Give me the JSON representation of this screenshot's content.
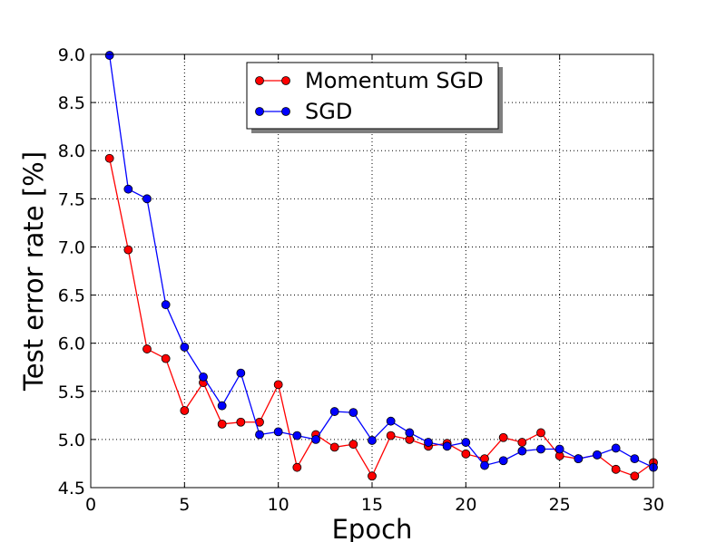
{
  "chart_data": {
    "type": "line",
    "title": "",
    "xlabel": "Epoch",
    "ylabel": "Test error rate [%]",
    "xlim": [
      0,
      30
    ],
    "ylim": [
      4.5,
      9.0
    ],
    "xticks": [
      0,
      5,
      10,
      15,
      20,
      25,
      30
    ],
    "yticks": [
      4.5,
      5.0,
      5.5,
      6.0,
      6.5,
      7.0,
      7.5,
      8.0,
      8.5,
      9.0
    ],
    "xtick_labels": [
      "0",
      "5",
      "10",
      "15",
      "20",
      "25",
      "30"
    ],
    "ytick_labels": [
      "4.5",
      "5.0",
      "5.5",
      "6.0",
      "6.5",
      "7.0",
      "7.5",
      "8.0",
      "8.5",
      "9.0"
    ],
    "grid": true,
    "legend_position": "top-center",
    "x": [
      1,
      2,
      3,
      4,
      5,
      6,
      7,
      8,
      9,
      10,
      11,
      12,
      13,
      14,
      15,
      16,
      17,
      18,
      19,
      20,
      21,
      22,
      23,
      24,
      25,
      26,
      27,
      28,
      29,
      30
    ],
    "series": [
      {
        "name": "Momentum SGD",
        "color": "#ff0000",
        "values": [
          7.92,
          6.97,
          5.94,
          5.84,
          5.3,
          5.59,
          5.16,
          5.18,
          5.18,
          5.57,
          4.71,
          5.05,
          4.92,
          4.95,
          4.62,
          5.04,
          5.0,
          4.93,
          4.96,
          4.85,
          4.8,
          5.02,
          4.97,
          5.07,
          4.83,
          4.8,
          4.84,
          4.69,
          4.62,
          4.76
        ]
      },
      {
        "name": "SGD",
        "color": "#0000ff",
        "values": [
          8.99,
          7.6,
          7.5,
          6.4,
          5.96,
          5.65,
          5.35,
          5.69,
          5.05,
          5.08,
          5.04,
          5.0,
          5.29,
          5.28,
          4.99,
          5.19,
          5.07,
          4.97,
          4.93,
          4.97,
          4.73,
          4.78,
          4.88,
          4.9,
          4.9,
          4.8,
          4.84,
          4.91,
          4.8,
          4.71
        ]
      }
    ]
  }
}
